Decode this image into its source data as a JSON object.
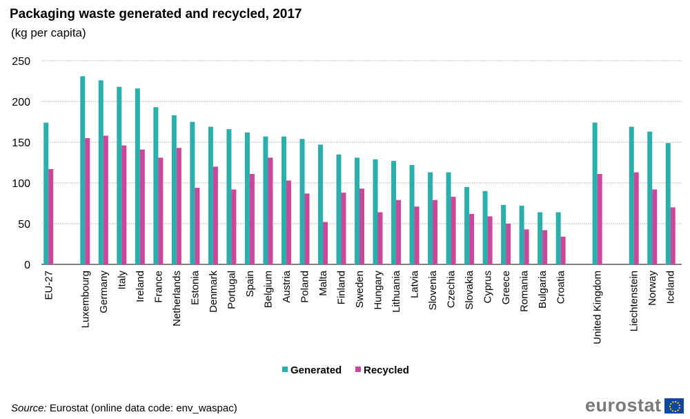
{
  "title": "Packaging waste generated and recycled, 2017",
  "subtitle": "(kg per capita)",
  "source_label": "Source:",
  "source_text": " Eurostat (online data code: env_waspac)",
  "logo_text": "eurostat",
  "colors": {
    "generated": "#2aafac",
    "recycled": "#c9489a",
    "grid": "#bfbfbf"
  },
  "chart_data": {
    "type": "bar",
    "title": "Packaging waste generated and recycled, 2017",
    "ylabel": "kg per capita",
    "ylim": [
      0,
      250
    ],
    "yticks": [
      0,
      50,
      100,
      150,
      200,
      250
    ],
    "grid": true,
    "legend_position": "bottom",
    "categories": [
      "EU-27",
      "",
      "Luxembourg",
      "Germany",
      "Italy",
      "Ireland",
      "France",
      "Netherlands",
      "Estonia",
      "Denmark",
      "Portugal",
      "Spain",
      "Belgium",
      "Austria",
      "Poland",
      "Malta",
      "Finland",
      "Sweden",
      "Hungary",
      "Lithuania",
      "Latvia",
      "Slovenia",
      "Czechia",
      "Slovakia",
      "Cyprus",
      "Greece",
      "Romania",
      "Bulgaria",
      "Croatia",
      "",
      "United Kingdom",
      "",
      "Liechtenstein",
      "Norway",
      "Iceland"
    ],
    "series": [
      {
        "name": "Generated",
        "values": [
          174,
          null,
          231,
          226,
          218,
          216,
          193,
          183,
          175,
          169,
          166,
          162,
          157,
          157,
          154,
          147,
          135,
          131,
          129,
          127,
          122,
          113,
          113,
          95,
          90,
          73,
          72,
          64,
          64,
          null,
          174,
          null,
          169,
          163,
          149
        ]
      },
      {
        "name": "Recycled",
        "values": [
          117,
          null,
          155,
          158,
          146,
          141,
          131,
          143,
          94,
          120,
          92,
          111,
          131,
          103,
          87,
          52,
          88,
          93,
          64,
          79,
          71,
          79,
          83,
          62,
          59,
          50,
          43,
          42,
          34,
          null,
          111,
          null,
          113,
          92,
          70
        ]
      }
    ]
  }
}
